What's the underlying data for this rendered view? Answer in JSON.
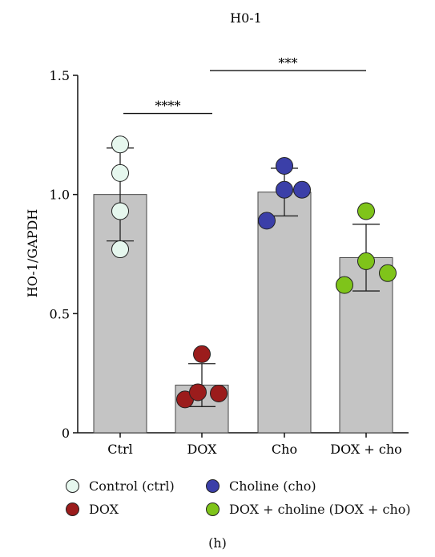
{
  "chart_data": {
    "type": "bar",
    "title": "H0-1",
    "ylabel": "HO-1/GAPDH",
    "xlabel": "",
    "ylim": [
      0,
      1.5
    ],
    "yticks": [
      0,
      0.5,
      1.0,
      1.5
    ],
    "ytick_labels": [
      "0",
      "0.5",
      "1.0",
      "1.5"
    ],
    "categories": [
      "Ctrl",
      "DOX",
      "Cho",
      "DOX + cho"
    ],
    "values": [
      1.0,
      0.2,
      1.01,
      0.735
    ],
    "errors": [
      0.195,
      0.09,
      0.1,
      0.14
    ],
    "points": [
      [
        0.77,
        0.93,
        1.09,
        1.21
      ],
      [
        0.14,
        0.17,
        0.165,
        0.33
      ],
      [
        0.89,
        1.02,
        1.02,
        1.12
      ],
      [
        0.62,
        0.72,
        0.67,
        0.93
      ]
    ],
    "point_colors": [
      "#e6f7ee",
      "#9b1c1c",
      "#3b3fa8",
      "#7fc41a"
    ],
    "bar_color": "#c4c4c4",
    "significance": [
      {
        "from": 0,
        "to": 1,
        "label": "****",
        "level": 1.34
      },
      {
        "from": 1,
        "to": 3,
        "label": "***",
        "level": 1.52
      }
    ],
    "legend": [
      {
        "label": "Control (ctrl)",
        "color": "#e6f7ee"
      },
      {
        "label": "Choline (cho)",
        "color": "#3b3fa8"
      },
      {
        "label": "DOX",
        "color": "#9b1c1c"
      },
      {
        "label": "DOX + choline (DOX + cho)",
        "color": "#7fc41a"
      }
    ],
    "legend_position": "bottom"
  },
  "panel_label": "(h)"
}
